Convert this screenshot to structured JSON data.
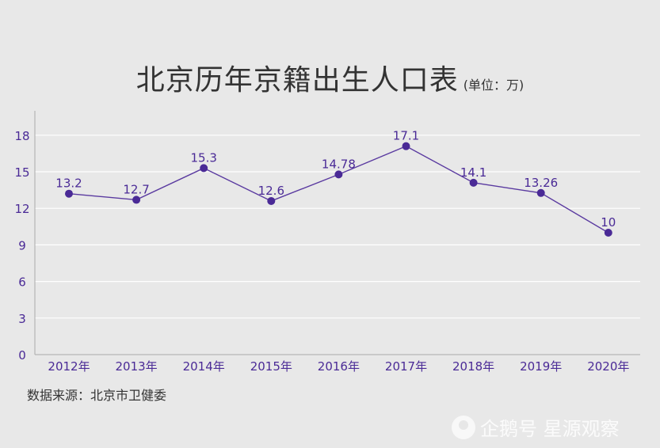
{
  "header": {
    "title": "北京历年京籍出生人口表",
    "unit": "(单位：万)"
  },
  "footer": {
    "source": "数据来源：北京市卫健委",
    "watermark": "企鹅号 星源观察"
  },
  "colors": {
    "line": "#5a3aa0",
    "marker": "#4a2a96",
    "label": "#4a2a96",
    "grid": "#ffffff",
    "axis": "#aaaaaa"
  },
  "chart_data": {
    "type": "line",
    "title": "北京历年京籍出生人口表",
    "subtitle": "(单位：万)",
    "categories": [
      "2012年",
      "2013年",
      "2014年",
      "2015年",
      "2016年",
      "2017年",
      "2018年",
      "2019年",
      "2020年"
    ],
    "values": [
      13.2,
      12.7,
      15.3,
      12.6,
      14.78,
      17.1,
      14.1,
      13.26,
      10
    ],
    "value_labels": [
      "13.2",
      "12.7",
      "15.3",
      "12.6",
      "14.78",
      "17.1",
      "14.1",
      "13.26",
      "10"
    ],
    "ylim": [
      0,
      20
    ],
    "yticks": [
      "0",
      "3",
      "6",
      "9",
      "12",
      "15",
      "18"
    ],
    "ytick_values": [
      0,
      3,
      6,
      9,
      12,
      15,
      18
    ],
    "grid": true,
    "legend": "none"
  }
}
